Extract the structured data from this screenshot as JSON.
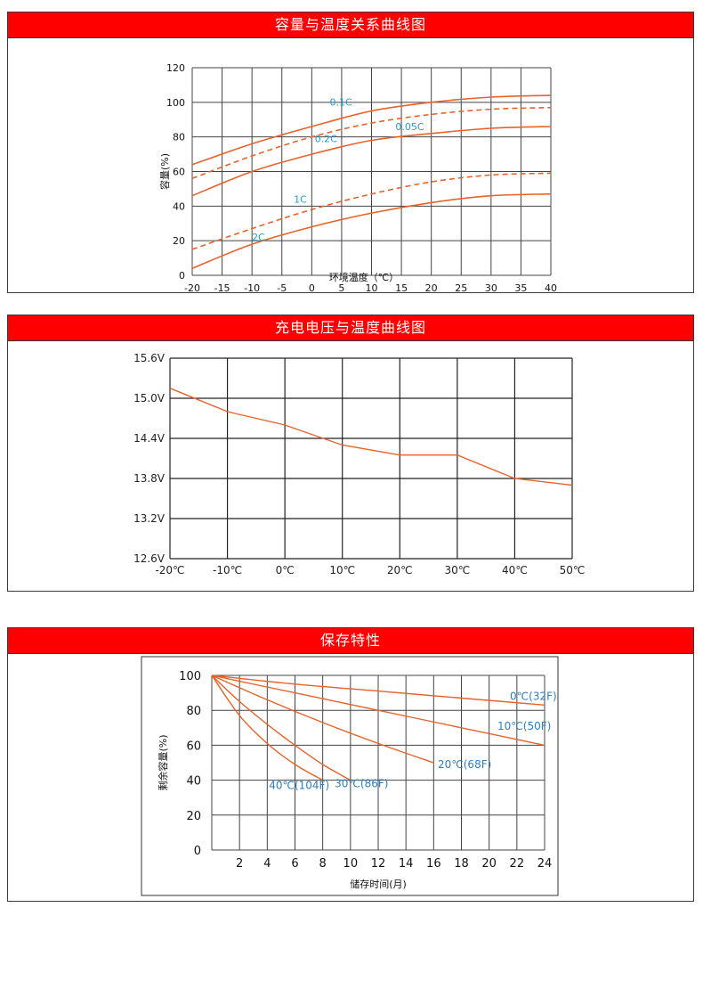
{
  "panels": [
    {
      "title": "容量与温度关系曲线图"
    },
    {
      "title": "充电电压与温度曲线图"
    },
    {
      "title": "保存特性"
    }
  ],
  "colors": {
    "header": "#ff0000",
    "curve": "#e8622a",
    "curve_label": "#1f9fd8",
    "chart3_label": "#2d7fc0",
    "grid": "#333333"
  },
  "chart_data": [
    {
      "type": "line",
      "title": "容量与温度关系曲线图",
      "xlabel": "环境温度（℃）",
      "ylabel": "容量(%)",
      "xlim": [
        -20,
        40
      ],
      "ylim": [
        0,
        120
      ],
      "x_ticks": [
        "-20",
        "-15",
        "-10",
        "-5",
        "0",
        "5",
        "10",
        "15",
        "20",
        "25",
        "30",
        "35",
        "40"
      ],
      "y_ticks": [
        "0",
        "20",
        "40",
        "60",
        "80",
        "100",
        "120"
      ],
      "grid": true,
      "series": [
        {
          "name": "0.05C",
          "style": "solid",
          "x": [
            -20,
            -10,
            0,
            10,
            20,
            30,
            40
          ],
          "y": [
            64,
            76,
            86,
            95,
            100,
            103,
            104
          ]
        },
        {
          "name": "0.1C",
          "style": "dashed",
          "x": [
            -20,
            -10,
            0,
            10,
            20,
            30,
            40
          ],
          "y": [
            56,
            69,
            80,
            88,
            93,
            96,
            97
          ]
        },
        {
          "name": "0.2C",
          "style": "solid",
          "x": [
            -20,
            -10,
            0,
            10,
            20,
            30,
            40
          ],
          "y": [
            46,
            60,
            70,
            78,
            82,
            85,
            86
          ]
        },
        {
          "name": "1C",
          "style": "dashed",
          "x": [
            -20,
            -10,
            0,
            10,
            20,
            30,
            40
          ],
          "y": [
            15,
            27,
            38,
            47,
            54,
            58,
            59
          ]
        },
        {
          "name": "2C",
          "style": "solid",
          "x": [
            -20,
            -10,
            0,
            10,
            20,
            30,
            40
          ],
          "y": [
            4,
            18,
            28,
            36,
            42,
            46,
            47
          ]
        }
      ]
    },
    {
      "type": "line",
      "title": "充电电压与温度曲线图",
      "xlim": [
        -20,
        50
      ],
      "ylim": [
        12.6,
        15.6
      ],
      "x_ticks": [
        "-20℃",
        "-10℃",
        "0℃",
        "10℃",
        "20℃",
        "30℃",
        "40℃",
        "50℃"
      ],
      "y_ticks": [
        "12.6V",
        "13.2V",
        "13.8V",
        "14.4V",
        "15.0V",
        "15.6V"
      ],
      "grid": true,
      "series": [
        {
          "name": "",
          "x": [
            -20,
            -10,
            0,
            10,
            20,
            30,
            40,
            50
          ],
          "y": [
            15.15,
            14.8,
            14.6,
            14.3,
            14.15,
            14.15,
            13.8,
            13.7
          ]
        }
      ]
    },
    {
      "type": "line",
      "title": "保存特性",
      "xlabel": "储存时间(月)",
      "ylabel": "剩余容量(%)",
      "xlim": [
        0,
        24
      ],
      "ylim": [
        0,
        100
      ],
      "x_ticks": [
        "2",
        "4",
        "6",
        "8",
        "10",
        "12",
        "14",
        "16",
        "18",
        "20",
        "22",
        "24"
      ],
      "y_ticks": [
        "0",
        "20",
        "40",
        "60",
        "80",
        "100"
      ],
      "grid": true,
      "series": [
        {
          "name": "0℃(32F)",
          "x": [
            0,
            6,
            12,
            18,
            24
          ],
          "y": [
            100,
            95,
            91,
            87,
            83
          ]
        },
        {
          "name": "10℃(50F)",
          "x": [
            0,
            6,
            12,
            18,
            24
          ],
          "y": [
            100,
            90,
            80,
            70,
            60
          ]
        },
        {
          "name": "20℃(68F)",
          "x": [
            0,
            4,
            8,
            12,
            16
          ],
          "y": [
            100,
            86,
            73,
            61,
            50
          ]
        },
        {
          "name": "30℃(86F)",
          "x": [
            0,
            2,
            4,
            6,
            8,
            10
          ],
          "y": [
            100,
            85,
            72,
            60,
            49,
            40
          ]
        },
        {
          "name": "40℃(104F)",
          "x": [
            0,
            2,
            4,
            6,
            8
          ],
          "y": [
            100,
            77,
            61,
            49,
            40
          ]
        }
      ]
    }
  ]
}
